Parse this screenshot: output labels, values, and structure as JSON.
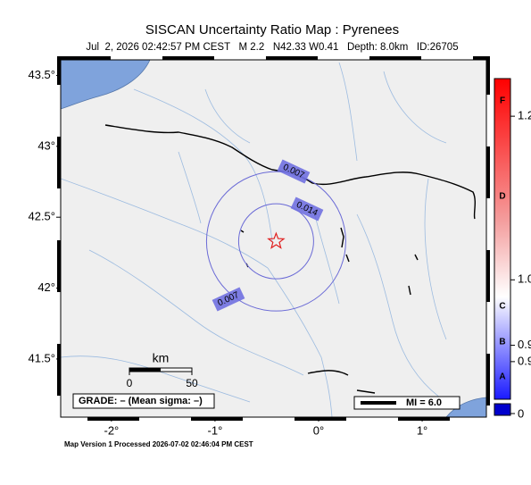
{
  "title": "SISCAN Uncertainty Ratio Map : Pyrenees",
  "subtitle": "Jul  2, 2026 02:42:57 PM CEST   M 2.2   N42.33 W0.41   Depth: 8.0km   ID:26705",
  "map": {
    "xlim": [
      -2.49,
      1.62
    ],
    "ylim": [
      41.09,
      43.61
    ],
    "xticks": [
      {
        "value": -2,
        "label": "-2°"
      },
      {
        "value": -1,
        "label": "-1°"
      },
      {
        "value": 0,
        "label": "0°"
      },
      {
        "value": 1,
        "label": "1°"
      }
    ],
    "yticks": [
      {
        "value": 43.5,
        "label": "43.5°"
      },
      {
        "value": 43,
        "label": "43°"
      },
      {
        "value": 42.5,
        "label": "42.5°"
      },
      {
        "value": 42,
        "label": "42°"
      },
      {
        "value": 41.5,
        "label": "41.5°"
      }
    ],
    "epicenter": {
      "lon": -0.41,
      "lat": 42.33
    },
    "contours": [
      {
        "value": 0.014,
        "label": "0.014"
      },
      {
        "value": 0.007,
        "label": "0.007"
      },
      {
        "value": 0.007,
        "label": "0.007"
      }
    ]
  },
  "scale_bar": {
    "unit": "km",
    "ticks": [
      0,
      50
    ]
  },
  "grade": "GRADE: – (Mean sigma: –)",
  "mi_box": "MI = 6.0",
  "colorbar": {
    "ylim": [
      0.854,
      1.246
    ],
    "letters": [
      "F",
      "D",
      "C",
      "B",
      "A"
    ],
    "ticks": [
      {
        "value": 1.2,
        "label": "1.2"
      },
      {
        "value": 1.0,
        "label": "1.0"
      },
      {
        "value": 0.92,
        "label": "0.9"
      },
      {
        "value": 0.9,
        "label": "0.9"
      }
    ],
    "zero_tick": 0
  },
  "footer": "Map Version 1 Processed 2026-07-02 02:46:04 PM CEST"
}
